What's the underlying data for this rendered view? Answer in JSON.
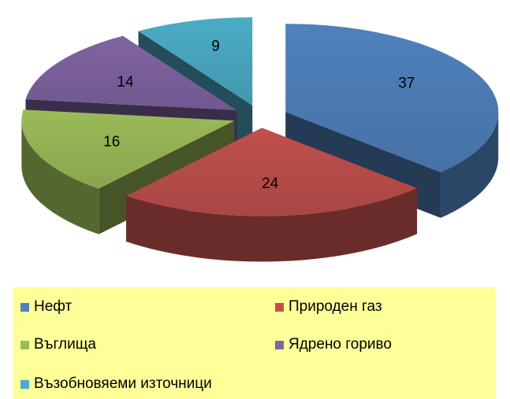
{
  "chart_data": {
    "type": "pie",
    "title": "",
    "three_d": true,
    "exploded": true,
    "show_values": true,
    "legend_position": "bottom",
    "legend_background": "#ffff99",
    "categories": [
      "Нефт",
      "Природен газ",
      "Въглища",
      "Ядрено гориво",
      "Възобновяеми източници"
    ],
    "values": [
      37,
      24,
      16,
      14,
      9
    ],
    "colors": [
      "#4f81bd",
      "#c0504d",
      "#9bbb59",
      "#8064a2",
      "#4bacc6"
    ],
    "value_labels": [
      "37",
      "24",
      "16",
      "14",
      "9"
    ]
  }
}
